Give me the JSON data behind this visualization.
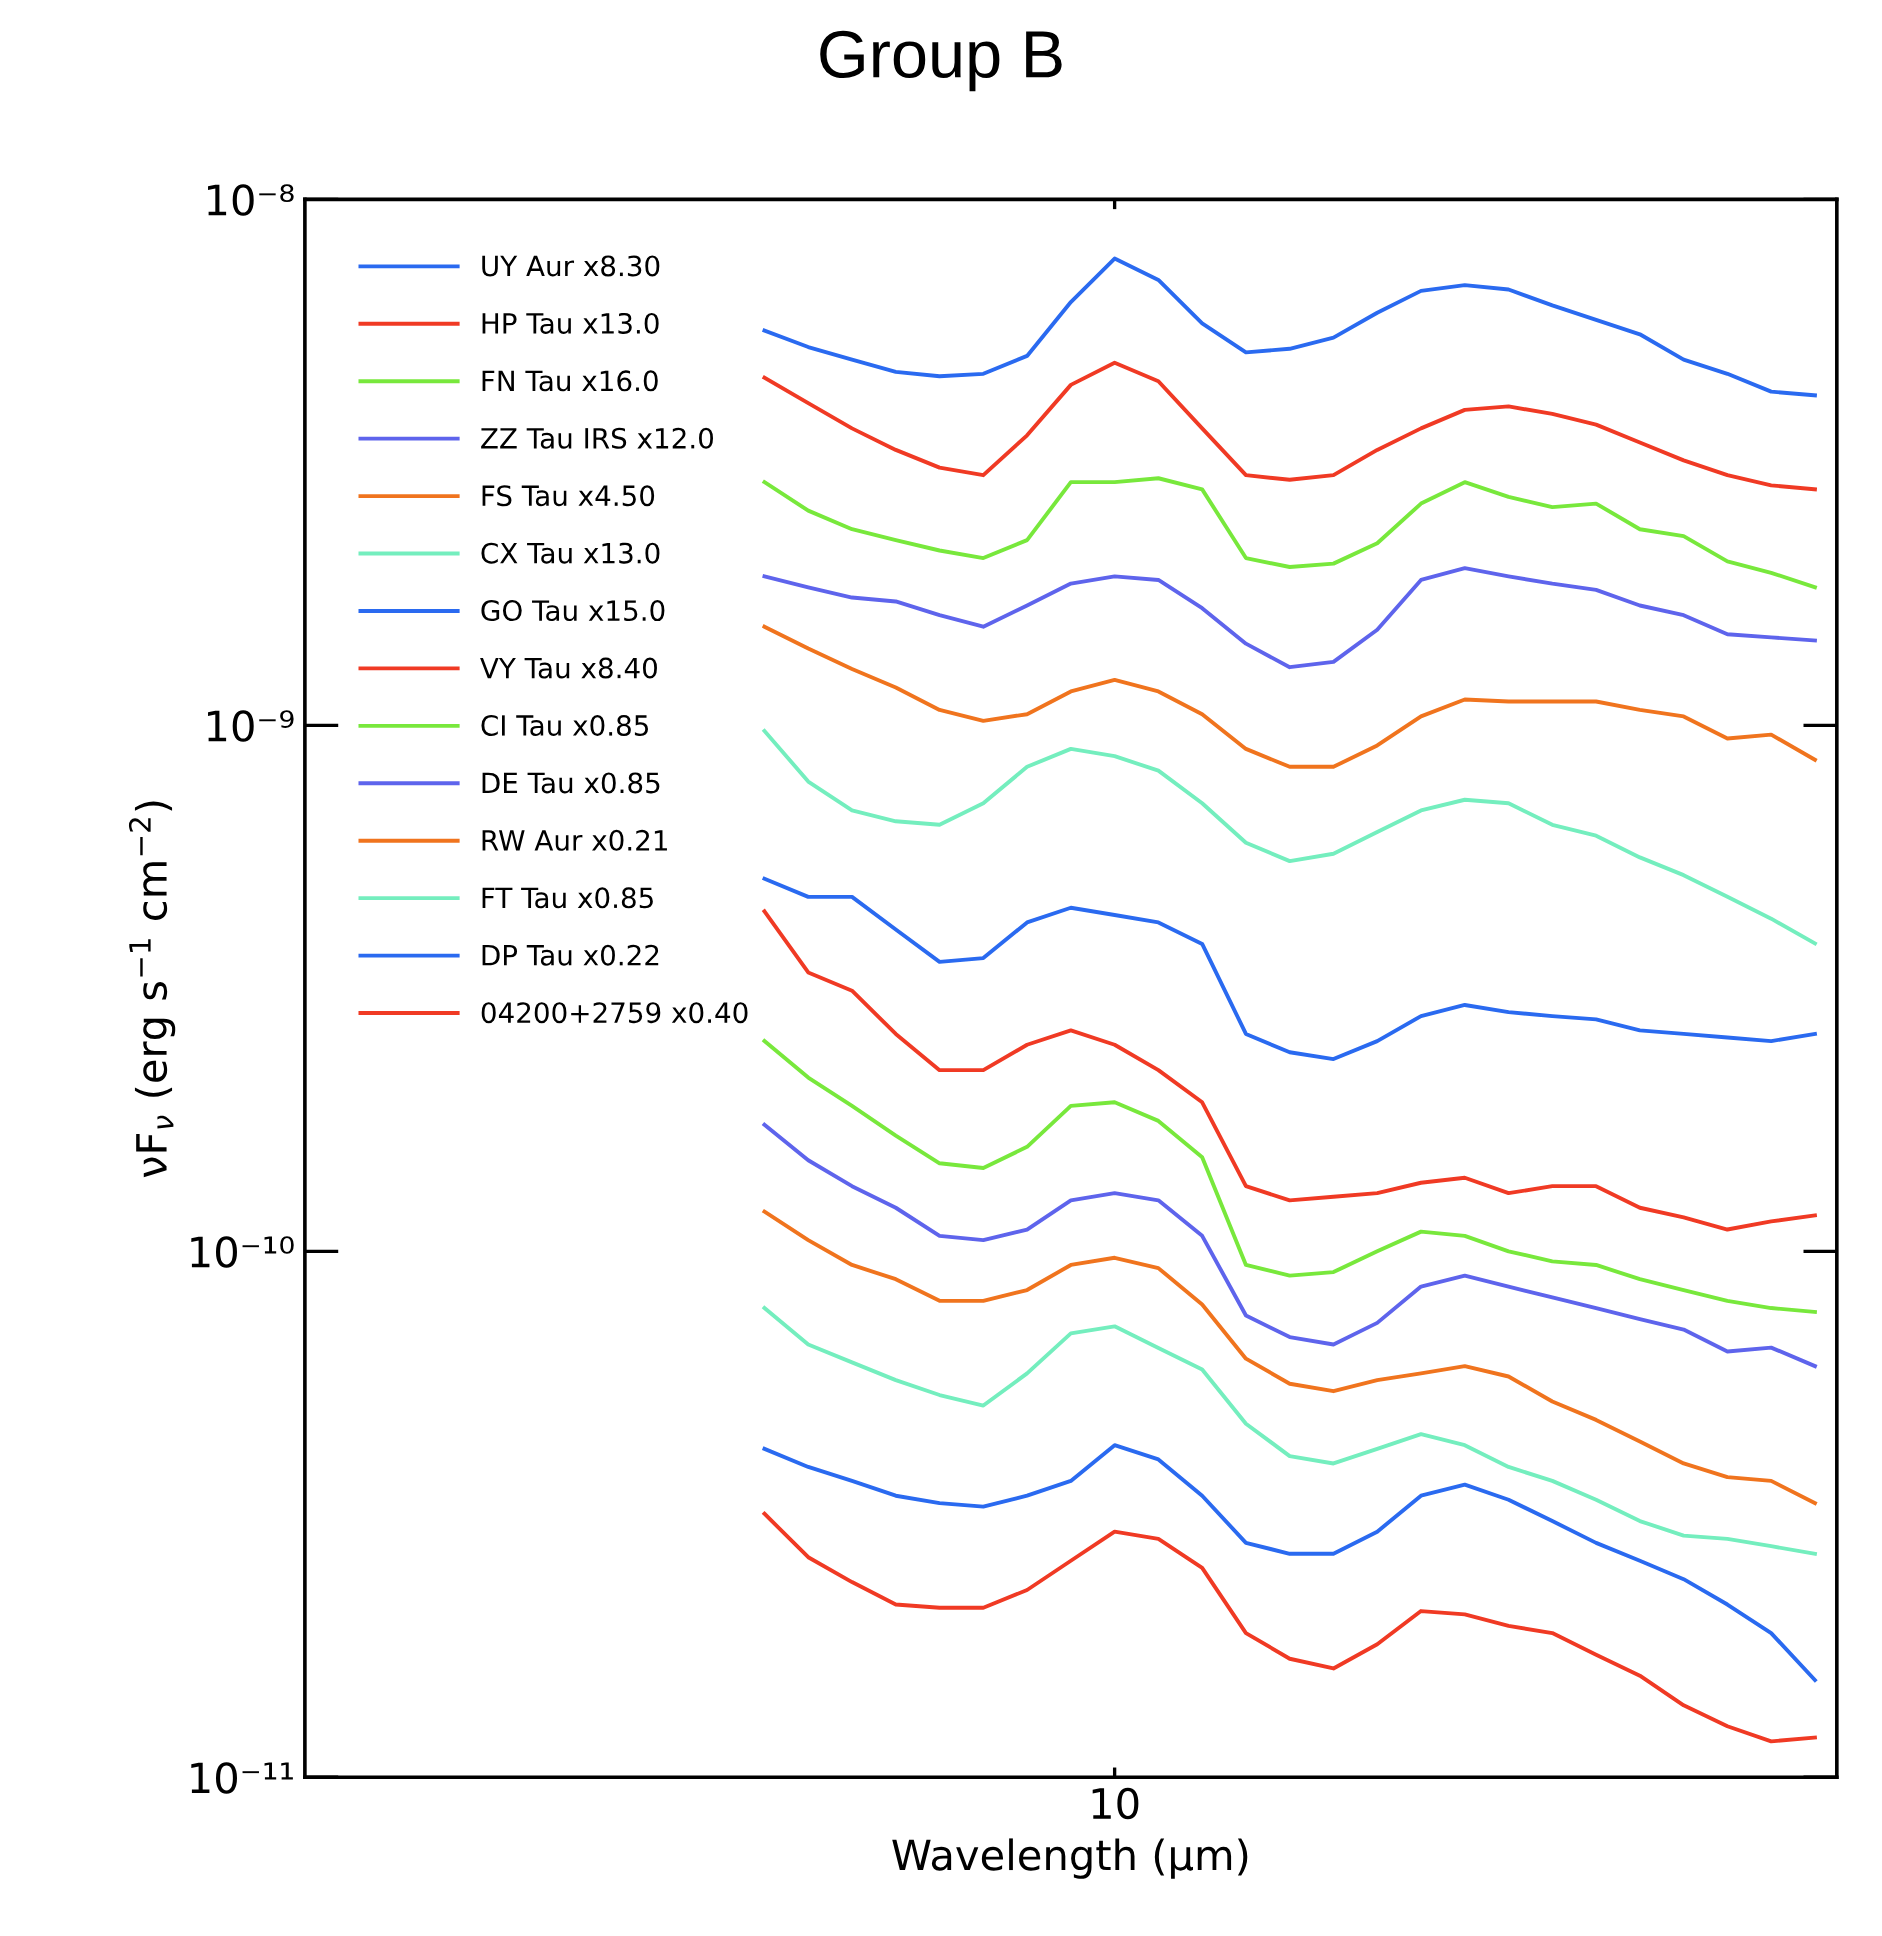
{
  "chart_data": {
    "type": "line",
    "title": "Group B",
    "xlabel": "Wavelength (μm)",
    "ylabel": "νF$_{ν}$ (erg s$^{−1}$ cm$^{−2}$)",
    "log": true,
    "ylim": [
      1e-11,
      1e-08
    ],
    "yticks": [
      {
        "value": 1e-11,
        "label": "10⁻¹¹"
      },
      {
        "value": 1e-10,
        "label": "10⁻¹⁰"
      },
      {
        "value": 1e-09,
        "label": "10⁻⁹"
      },
      {
        "value": 1e-08,
        "label": "10⁻⁸"
      }
    ],
    "grid": false,
    "legend": "top left",
    "marker": "none",
    "line_style": "solid",
    "categories": [
      null,
      null,
      null,
      null,
      null,
      null,
      null,
      null,
      null,
      null,
      null,
      null,
      null,
      null,
      null,
      null,
      null,
      null,
      "10",
      null,
      null,
      null,
      null,
      null,
      null,
      null,
      null,
      null,
      null,
      null,
      null,
      null,
      null,
      null,
      null
    ],
    "series": [
      {
        "name": "UY Aur x8.30",
        "color": "#2a6af0",
        "values": [
          null,
          null,
          null,
          null,
          null,
          null,
          null,
          null,
          null,
          null,
          5.63e-09,
          5.24e-09,
          4.96e-09,
          4.7e-09,
          4.61e-09,
          4.66e-09,
          5.04e-09,
          6.38e-09,
          7.72e-09,
          7.03e-09,
          5.81e-09,
          5.12e-09,
          5.2e-09,
          5.46e-09,
          6.09e-09,
          6.7e-09,
          6.87e-09,
          6.74e-09,
          6.29e-09,
          5.9e-09,
          5.54e-09,
          4.96e-09,
          4.66e-09,
          4.31e-09,
          4.24e-09
        ]
      },
      {
        "name": "HP Tau x13.0",
        "color": "#f03a24",
        "values": [
          null,
          null,
          null,
          null,
          null,
          null,
          null,
          null,
          null,
          null,
          4.58e-09,
          4.1e-09,
          3.67e-09,
          3.34e-09,
          3.09e-09,
          2.99e-09,
          3.56e-09,
          4.44e-09,
          4.89e-09,
          4.51e-09,
          3.67e-09,
          2.99e-09,
          2.93e-09,
          2.99e-09,
          3.34e-09,
          3.67e-09,
          3.98e-09,
          4.04e-09,
          3.91e-09,
          3.73e-09,
          3.45e-09,
          3.19e-09,
          2.99e-09,
          2.86e-09,
          2.81e-09
        ]
      },
      {
        "name": "FN Tau x16.0",
        "color": "#78e83c",
        "values": [
          null,
          null,
          null,
          null,
          null,
          null,
          null,
          null,
          null,
          null,
          2.9e-09,
          2.56e-09,
          2.36e-09,
          2.25e-09,
          2.15e-09,
          2.08e-09,
          2.25e-09,
          2.9e-09,
          2.9e-09,
          2.95e-09,
          2.81e-09,
          2.08e-09,
          2e-09,
          2.03e-09,
          2.22e-09,
          2.64e-09,
          2.9e-09,
          2.72e-09,
          2.6e-09,
          2.64e-09,
          2.36e-09,
          2.29e-09,
          2.05e-09,
          1.95e-09,
          1.83e-09
        ]
      },
      {
        "name": "ZZ Tau IRS x12.0",
        "color": "#5e64ec",
        "values": [
          null,
          null,
          null,
          null,
          null,
          null,
          null,
          null,
          null,
          null,
          1.92e-09,
          1.83e-09,
          1.75e-09,
          1.72e-09,
          1.62e-09,
          1.54e-09,
          1.69e-09,
          1.86e-09,
          1.92e-09,
          1.89e-09,
          1.67e-09,
          1.43e-09,
          1.29e-09,
          1.32e-09,
          1.52e-09,
          1.89e-09,
          1.99e-09,
          1.92e-09,
          1.86e-09,
          1.81e-09,
          1.69e-09,
          1.62e-09,
          1.49e-09,
          1.47e-09,
          1.45e-09
        ]
      },
      {
        "name": "FS Tau x4.50",
        "color": "#f0741e",
        "values": [
          null,
          null,
          null,
          null,
          null,
          null,
          null,
          null,
          null,
          null,
          1.54e-09,
          1.4e-09,
          1.28e-09,
          1.18e-09,
          1.07e-09,
          1.02e-09,
          1.05e-09,
          1.16e-09,
          1.22e-09,
          1.16e-09,
          1.05e-09,
          9.02e-10,
          8.34e-10,
          8.34e-10,
          9.16e-10,
          1.04e-09,
          1.12e-09,
          1.11e-09,
          1.11e-09,
          1.11e-09,
          1.07e-09,
          1.04e-09,
          9.44e-10,
          9.6e-10,
          8.6e-10
        ]
      },
      {
        "name": "CX Tau x13.0",
        "color": "#74eebe",
        "values": [
          null,
          null,
          null,
          null,
          null,
          null,
          null,
          null,
          null,
          null,
          9.76e-10,
          7.82e-10,
          6.89e-10,
          6.57e-10,
          6.47e-10,
          7.11e-10,
          8.34e-10,
          9.02e-10,
          8.74e-10,
          8.2e-10,
          7.11e-10,
          5.98e-10,
          5.52e-10,
          5.7e-10,
          6.27e-10,
          6.89e-10,
          7.22e-10,
          7.11e-10,
          6.47e-10,
          6.17e-10,
          5.61e-10,
          5.19e-10,
          4.72e-10,
          4.29e-10,
          3.85e-10
        ]
      },
      {
        "name": "GO Tau x15.0",
        "color": "#2a6af0",
        "values": [
          null,
          null,
          null,
          null,
          null,
          null,
          null,
          null,
          null,
          null,
          5.11e-10,
          4.72e-10,
          4.72e-10,
          4.09e-10,
          3.55e-10,
          3.61e-10,
          4.22e-10,
          4.5e-10,
          4.36e-10,
          4.22e-10,
          3.84e-10,
          2.59e-10,
          2.39e-10,
          2.32e-10,
          2.51e-10,
          2.8e-10,
          2.94e-10,
          2.85e-10,
          2.8e-10,
          2.76e-10,
          2.63e-10,
          2.59e-10,
          2.55e-10,
          2.51e-10,
          2.59e-10
        ]
      },
      {
        "name": "VY Tau x8.40",
        "color": "#f03a24",
        "values": [
          null,
          null,
          null,
          null,
          null,
          null,
          null,
          null,
          null,
          null,
          4.43e-10,
          3.39e-10,
          3.13e-10,
          2.59e-10,
          2.21e-10,
          2.21e-10,
          2.47e-10,
          2.63e-10,
          2.47e-10,
          2.21e-10,
          1.92e-10,
          1.33e-10,
          1.25e-10,
          1.27e-10,
          1.29e-10,
          1.35e-10,
          1.38e-10,
          1.29e-10,
          1.33e-10,
          1.33e-10,
          1.21e-10,
          1.16e-10,
          1.1e-10,
          1.14e-10,
          1.17e-10
        ]
      },
      {
        "name": "CI Tau x0.85",
        "color": "#78e83c",
        "values": [
          null,
          null,
          null,
          null,
          null,
          null,
          null,
          null,
          null,
          null,
          2.51e-10,
          2.14e-10,
          1.89e-10,
          1.66e-10,
          1.47e-10,
          1.44e-10,
          1.58e-10,
          1.89e-10,
          1.92e-10,
          1.77e-10,
          1.51e-10,
          9.42e-11,
          8.99e-11,
          9.13e-11,
          1e-10,
          1.09e-10,
          1.07e-10,
          1e-10,
          9.57e-11,
          9.42e-11,
          8.85e-11,
          8.44e-11,
          8.05e-11,
          7.8e-11,
          7.67e-11
        ]
      },
      {
        "name": "DE Tau x0.85",
        "color": "#5e64ec",
        "values": [
          null,
          null,
          null,
          null,
          null,
          null,
          null,
          null,
          null,
          null,
          1.74e-10,
          1.49e-10,
          1.33e-10,
          1.21e-10,
          1.07e-10,
          1.05e-10,
          1.1e-10,
          1.25e-10,
          1.29e-10,
          1.25e-10,
          1.07e-10,
          7.55e-11,
          6.87e-11,
          6.65e-11,
          7.31e-11,
          8.57e-11,
          8.99e-11,
          8.57e-11,
          8.17e-11,
          7.8e-11,
          7.43e-11,
          7.1e-11,
          6.45e-11,
          6.56e-11,
          6.05e-11
        ]
      },
      {
        "name": "RW Aur x0.21",
        "color": "#f0741e",
        "values": [
          null,
          null,
          null,
          null,
          null,
          null,
          null,
          null,
          null,
          null,
          1.19e-10,
          1.05e-10,
          9.42e-11,
          8.85e-11,
          8.05e-11,
          8.05e-11,
          8.44e-11,
          9.42e-11,
          9.72e-11,
          9.29e-11,
          7.92e-11,
          6.25e-11,
          5.6e-11,
          5.42e-11,
          5.69e-11,
          5.86e-11,
          6.05e-11,
          5.78e-11,
          5.18e-11,
          4.78e-11,
          4.35e-11,
          3.95e-11,
          3.72e-11,
          3.66e-11,
          3.32e-11
        ]
      },
      {
        "name": "FT Tau x0.85",
        "color": "#74eebe",
        "values": [
          null,
          null,
          null,
          null,
          null,
          null,
          null,
          null,
          null,
          null,
          7.8e-11,
          6.65e-11,
          6.15e-11,
          5.69e-11,
          5.33e-11,
          5.09e-11,
          5.86e-11,
          6.98e-11,
          7.2e-11,
          6.55e-11,
          5.96e-11,
          4.7e-11,
          4.08e-11,
          3.95e-11,
          4.21e-11,
          4.49e-11,
          4.28e-11,
          3.89e-11,
          3.66e-11,
          3.37e-11,
          3.07e-11,
          2.88e-11,
          2.84e-11,
          2.75e-11,
          2.66e-11
        ]
      },
      {
        "name": "DP Tau x0.22",
        "color": "#2a6af0",
        "values": [
          null,
          null,
          null,
          null,
          null,
          null,
          null,
          null,
          null,
          null,
          4.21e-11,
          3.89e-11,
          3.66e-11,
          3.43e-11,
          3.32e-11,
          3.27e-11,
          3.43e-11,
          3.66e-11,
          4.28e-11,
          4.02e-11,
          3.43e-11,
          2.79e-11,
          2.66e-11,
          2.66e-11,
          2.93e-11,
          3.43e-11,
          3.6e-11,
          3.37e-11,
          3.07e-11,
          2.79e-11,
          2.58e-11,
          2.38e-11,
          2.13e-11,
          1.88e-11,
          1.53e-11
        ]
      },
      {
        "name": "04200+2759 x0.40",
        "color": "#f03a24",
        "values": [
          null,
          null,
          null,
          null,
          null,
          null,
          null,
          null,
          null,
          null,
          3.17e-11,
          2.62e-11,
          2.35e-11,
          2.13e-11,
          2.1e-11,
          2.1e-11,
          2.27e-11,
          2.58e-11,
          2.93e-11,
          2.84e-11,
          2.5e-11,
          1.88e-11,
          1.68e-11,
          1.61e-11,
          1.79e-11,
          2.07e-11,
          2.04e-11,
          1.94e-11,
          1.88e-11,
          1.71e-11,
          1.56e-11,
          1.37e-11,
          1.25e-11,
          1.17e-11,
          1.19e-11
        ]
      }
    ]
  }
}
